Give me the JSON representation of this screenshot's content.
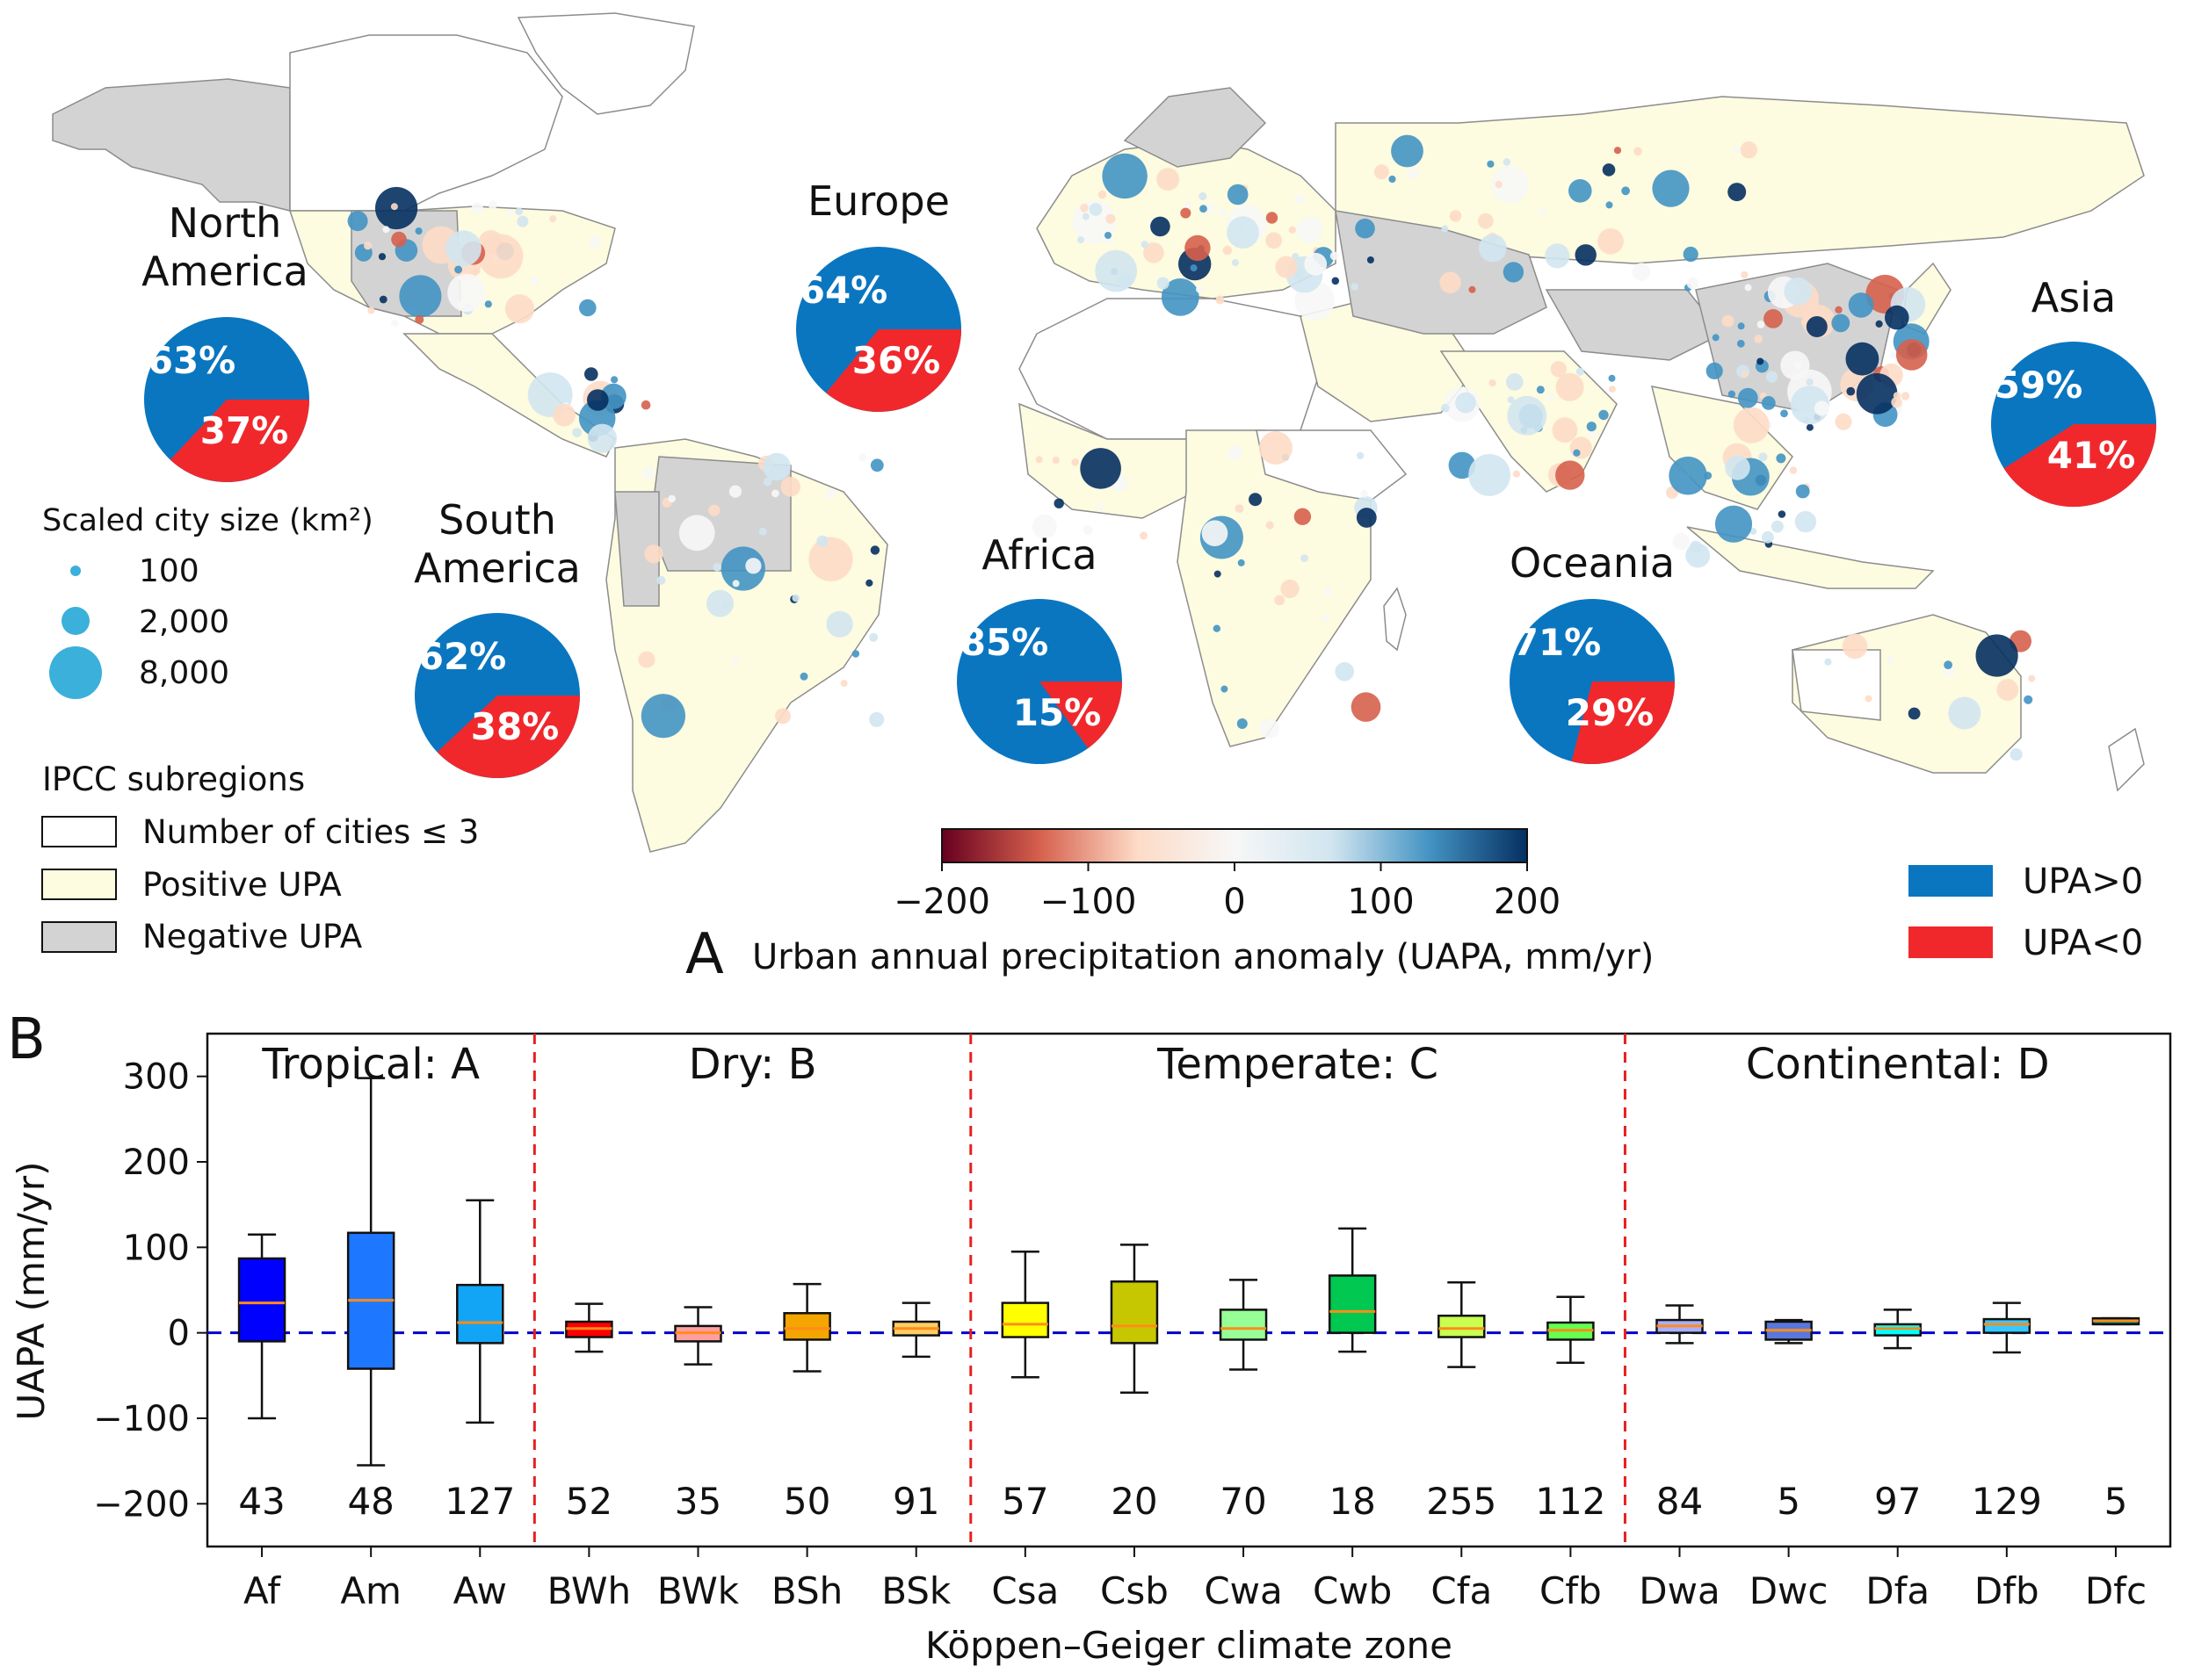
{
  "panel_a": {
    "panel_letter": "A",
    "colorbar": {
      "label": "Urban annual precipitation anomaly (UAPA, mm/yr)",
      "ticks": [
        "−200",
        "−100",
        "0",
        "100",
        "200"
      ],
      "range": [
        -200,
        200
      ],
      "colormap": [
        "#67001f",
        "#d6604d",
        "#fddbc7",
        "#f7f7f7",
        "#d1e5f0",
        "#4393c3",
        "#053061"
      ]
    },
    "size_legend": {
      "title": "Scaled city size (km²)",
      "items": [
        "100",
        "2,000",
        "8,000"
      ]
    },
    "region_legend": {
      "title": "IPCC subregions",
      "items": [
        {
          "label": "Number of cities ≤ 3",
          "color": "#ffffff"
        },
        {
          "label": "Positive UPA",
          "color": "#fdfbe0"
        },
        {
          "label": "Negative UPA",
          "color": "#d3d3d3"
        }
      ]
    },
    "pie_legend": [
      {
        "label": "UPA>0",
        "color": "#0a76c0"
      },
      {
        "label": "UPA<0",
        "color": "#f0282c"
      }
    ],
    "pies": [
      {
        "name": "North America",
        "line1": "North",
        "line2": "America",
        "pos": "63%",
        "neg": "37%",
        "pos_value": 63
      },
      {
        "name": "Europe",
        "line1": "Europe",
        "line2": "",
        "pos": "64%",
        "neg": "36%",
        "pos_value": 64
      },
      {
        "name": "South America",
        "line1": "South",
        "line2": "America",
        "pos": "62%",
        "neg": "38%",
        "pos_value": 62
      },
      {
        "name": "Africa",
        "line1": "Africa",
        "line2": "",
        "pos": "85%",
        "neg": "15%",
        "pos_value": 85
      },
      {
        "name": "Oceania",
        "line1": "Oceania",
        "line2": "",
        "pos": "71%",
        "neg": "29%",
        "pos_value": 71
      },
      {
        "name": "Asia",
        "line1": "Asia",
        "line2": "",
        "pos": "59%",
        "neg": "41%",
        "pos_value": 59
      }
    ]
  },
  "chart_data": {
    "type": "box",
    "panel_letter": "B",
    "xlabel": "Köppen–Geiger climate zone",
    "ylabel": "UAPA (mm/yr)",
    "ylim": [
      -250,
      350
    ],
    "yticks": [
      -200,
      -100,
      0,
      100,
      200,
      300
    ],
    "ytick_labels": [
      "−200",
      "−100",
      "0",
      "100",
      "200",
      "300"
    ],
    "zero_line": {
      "value": 0,
      "style": "dashed",
      "color": "#0000cc"
    },
    "groups": [
      {
        "label": "Tropical: A",
        "members": [
          "Af",
          "Am",
          "Aw"
        ]
      },
      {
        "label": "Dry: B",
        "members": [
          "BWh",
          "BWk",
          "BSh",
          "BSk"
        ]
      },
      {
        "label": "Temperate: C",
        "members": [
          "Csa",
          "Csb",
          "Cwa",
          "Cwb",
          "Cfa",
          "Cfb"
        ]
      },
      {
        "label": "Continental: D",
        "members": [
          "Dwa",
          "Dwc",
          "Dfa",
          "Dfb",
          "Dfc"
        ]
      }
    ],
    "boxes": [
      {
        "zone": "Af",
        "n": "43",
        "color": "#0000ff",
        "wlo": -100,
        "q1": -10,
        "med": 35,
        "q3": 87,
        "whi": 115
      },
      {
        "zone": "Am",
        "n": "48",
        "color": "#1e78ff",
        "wlo": -155,
        "q1": -42,
        "med": 38,
        "q3": 117,
        "whi": 298
      },
      {
        "zone": "Aw",
        "n": "127",
        "color": "#12a5f5",
        "wlo": -105,
        "q1": -12,
        "med": 12,
        "q3": 56,
        "whi": 155
      },
      {
        "zone": "BWh",
        "n": "52",
        "color": "#ff0000",
        "wlo": -22,
        "q1": -5,
        "med": 5,
        "q3": 13,
        "whi": 34
      },
      {
        "zone": "BWk",
        "n": "35",
        "color": "#ff9e9e",
        "wlo": -37,
        "q1": -10,
        "med": 0,
        "q3": 8,
        "whi": 30
      },
      {
        "zone": "BSh",
        "n": "50",
        "color": "#f5a500",
        "wlo": -45,
        "q1": -8,
        "med": 5,
        "q3": 23,
        "whi": 57
      },
      {
        "zone": "BSk",
        "n": "91",
        "color": "#ffcf65",
        "wlo": -28,
        "q1": -3,
        "med": 5,
        "q3": 13,
        "whi": 35
      },
      {
        "zone": "Csa",
        "n": "57",
        "color": "#ffff00",
        "wlo": -52,
        "q1": -5,
        "med": 10,
        "q3": 35,
        "whi": 95
      },
      {
        "zone": "Csb",
        "n": "20",
        "color": "#c6c700",
        "wlo": -70,
        "q1": -12,
        "med": 8,
        "q3": 60,
        "whi": 103
      },
      {
        "zone": "Cwa",
        "n": "70",
        "color": "#96ff96",
        "wlo": -43,
        "q1": -8,
        "med": 5,
        "q3": 27,
        "whi": 62
      },
      {
        "zone": "Cwb",
        "n": "18",
        "color": "#00c850",
        "wlo": -22,
        "q1": 0,
        "med": 25,
        "q3": 67,
        "whi": 122
      },
      {
        "zone": "Cfa",
        "n": "255",
        "color": "#c8ff50",
        "wlo": -40,
        "q1": -5,
        "med": 5,
        "q3": 20,
        "whi": 59
      },
      {
        "zone": "Cfb",
        "n": "112",
        "color": "#64ff50",
        "wlo": -35,
        "q1": -8,
        "med": 3,
        "q3": 12,
        "whi": 42
      },
      {
        "zone": "Dwa",
        "n": "84",
        "color": "#aaafff",
        "wlo": -12,
        "q1": 0,
        "med": 8,
        "q3": 15,
        "whi": 32
      },
      {
        "zone": "Dwc",
        "n": "5",
        "color": "#5a78dc",
        "wlo": -12,
        "q1": -8,
        "med": 3,
        "q3": 13,
        "whi": 15
      },
      {
        "zone": "Dfa",
        "n": "97",
        "color": "#00ffff",
        "wlo": -18,
        "q1": -3,
        "med": 5,
        "q3": 10,
        "whi": 27
      },
      {
        "zone": "Dfb",
        "n": "129",
        "color": "#37c8ff",
        "wlo": -23,
        "q1": 0,
        "med": 10,
        "q3": 16,
        "whi": 35
      },
      {
        "zone": "Dfc",
        "n": "5",
        "color": "#007d7d",
        "wlo": 10,
        "q1": 10,
        "med": 14,
        "q3": 17,
        "whi": 17
      }
    ]
  }
}
